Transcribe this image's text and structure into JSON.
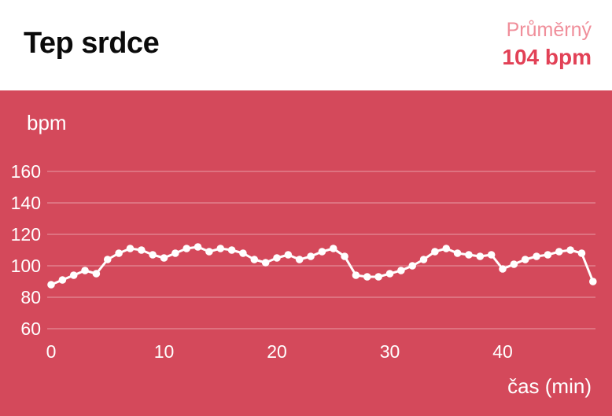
{
  "header": {
    "title": "Tep srdce",
    "average_label": "Průměrný",
    "average_value": "104 bpm"
  },
  "colors": {
    "background_red": "#d4495b",
    "average_label_pink": "#f08e9a",
    "average_value_red": "#e24156",
    "line_white": "#ffffff",
    "grid_line": "rgba(255,255,255,0.45)"
  },
  "chart_data": {
    "type": "line",
    "title": "Tep srdce",
    "xlabel": "čas (min)",
    "ylabel": "bpm",
    "x_interval_min": 1,
    "x_ticks": [
      0,
      10,
      20,
      30,
      40
    ],
    "y_ticks": [
      160,
      140,
      120,
      100,
      80,
      60
    ],
    "ylim": [
      60,
      170
    ],
    "xlim": [
      0,
      48
    ],
    "grid": true,
    "legend": false,
    "values": [
      88,
      91,
      94,
      97,
      95,
      104,
      108,
      111,
      110,
      107,
      105,
      108,
      111,
      112,
      109,
      111,
      110,
      108,
      104,
      102,
      105,
      107,
      104,
      106,
      109,
      111,
      106,
      94,
      93,
      93,
      95,
      97,
      100,
      104,
      109,
      111,
      108,
      107,
      106,
      107,
      98,
      101,
      104,
      106,
      107,
      109,
      110,
      108,
      90
    ]
  }
}
